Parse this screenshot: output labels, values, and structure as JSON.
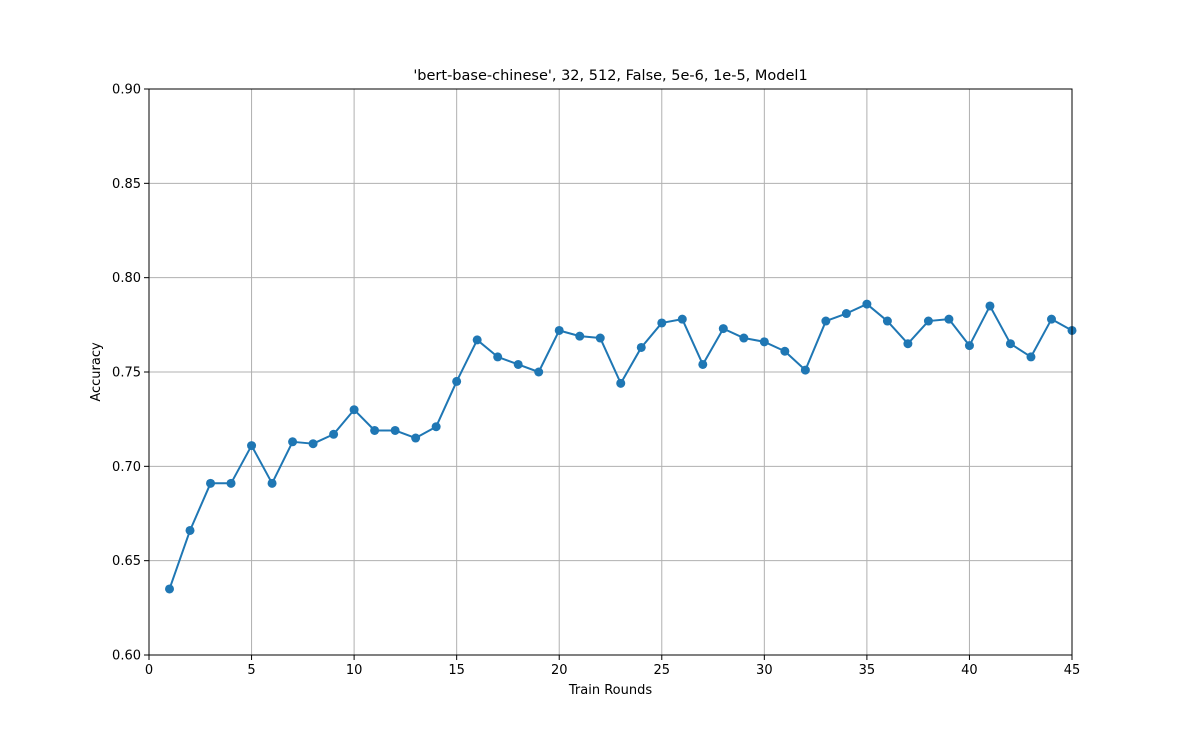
{
  "chart_data": {
    "type": "line",
    "title": "'bert-base-chinese', 32, 512, False, 5e-6, 1e-5, Model1",
    "xlabel": "Train Rounds",
    "ylabel": "Accuracy",
    "xlim": [
      0,
      45
    ],
    "ylim": [
      0.6,
      0.9
    ],
    "xticks": [
      0,
      5,
      10,
      15,
      20,
      25,
      30,
      35,
      40,
      45
    ],
    "xtick_labels": [
      "0",
      "5",
      "10",
      "15",
      "20",
      "25",
      "30",
      "35",
      "40",
      "45"
    ],
    "yticks": [
      0.6,
      0.65,
      0.7,
      0.75,
      0.8,
      0.85,
      0.9
    ],
    "ytick_labels": [
      "0.60",
      "0.65",
      "0.70",
      "0.75",
      "0.80",
      "0.85",
      "0.90"
    ],
    "grid": true,
    "series": [
      {
        "color": "#1f77b4",
        "marker": "circle",
        "x": [
          1,
          2,
          3,
          4,
          5,
          6,
          7,
          8,
          9,
          10,
          11,
          12,
          13,
          14,
          15,
          16,
          17,
          18,
          19,
          20,
          21,
          22,
          23,
          24,
          25,
          26,
          27,
          28,
          29,
          30,
          31,
          32,
          33,
          34,
          35,
          36,
          37,
          38,
          39,
          40,
          41,
          42,
          43,
          44,
          45
        ],
        "y": [
          0.635,
          0.666,
          0.691,
          0.691,
          0.711,
          0.691,
          0.713,
          0.712,
          0.717,
          0.73,
          0.719,
          0.719,
          0.715,
          0.721,
          0.745,
          0.767,
          0.758,
          0.754,
          0.75,
          0.772,
          0.769,
          0.768,
          0.744,
          0.763,
          0.776,
          0.778,
          0.754,
          0.773,
          0.768,
          0.766,
          0.761,
          0.751,
          0.777,
          0.781,
          0.786,
          0.777,
          0.765,
          0.777,
          0.778,
          0.764,
          0.785,
          0.765,
          0.758,
          0.778,
          0.772
        ]
      }
    ]
  }
}
